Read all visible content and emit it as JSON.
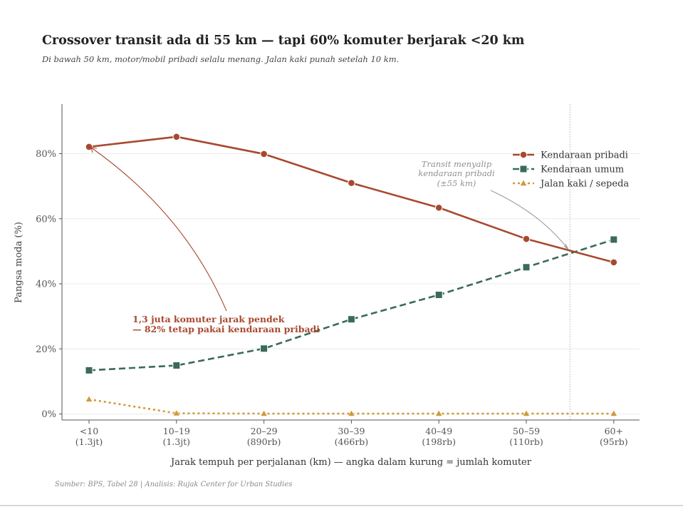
{
  "header": {
    "title": "Crossover transit ada di 55 km — tapi 60% komuter berjarak <20 km",
    "subtitle": "Di bawah 50 km, motor/mobil pribadi selalu menang. Jalan kaki punah setelah 10 km."
  },
  "footer": {
    "source": "Sumber: BPS, Tabel 28  |  Analisis: Rujak Center for Urban Studies"
  },
  "chart_data": {
    "type": "line",
    "title": "Crossover transit ada di 55 km — tapi 60% komuter berjarak <20 km",
    "subtitle": "Di bawah 50 km, motor/mobil pribadi selalu menang. Jalan kaki punah setelah 10 km.",
    "xlabel": "Jarak tempuh per perjalanan (km) — angka dalam kurung = jumlah komuter",
    "ylabel": "Pangsa moda (%)",
    "categories": [
      "<10",
      "10–19",
      "20–29",
      "30–39",
      "40–49",
      "50–59",
      "60+"
    ],
    "category_sublabels": [
      "(1.3jt)",
      "(1.3jt)",
      "(890rb)",
      "(466rb)",
      "(198rb)",
      "(110rb)",
      "(95rb)"
    ],
    "ylim": [
      -2,
      94
    ],
    "yticks": [
      0,
      20,
      40,
      60,
      80
    ],
    "ytick_labels": [
      "0%",
      "20%",
      "40%",
      "60%",
      "80%"
    ],
    "grid": "horizontal",
    "legend_position": "top-right",
    "series": [
      {
        "name": "Kendaraan pribadi",
        "color": "#a8492f",
        "marker": "circle",
        "linestyle": "solid",
        "values": [
          82.1,
          85.2,
          79.9,
          71.0,
          63.4,
          53.8,
          46.6
        ]
      },
      {
        "name": "Kendaraan umum",
        "color": "#3a6b58",
        "marker": "square",
        "linestyle": "dashed",
        "values": [
          13.4,
          14.9,
          20.1,
          29.1,
          36.6,
          45.1,
          53.6
        ]
      },
      {
        "name": "Jalan kaki / sepeda",
        "color": "#d09a3a",
        "marker": "triangle",
        "linestyle": "dotted",
        "values": [
          4.5,
          0.2,
          0.1,
          0.1,
          0.1,
          0.1,
          0.1
        ]
      }
    ],
    "reference_line": {
      "x_km": 55,
      "style": "dotted",
      "color": "#aaaaaa"
    },
    "annotations": [
      {
        "text_lines": [
          "Transit menyalip",
          "kendaraan pribadi",
          "(±55 km)"
        ],
        "color": "#8f8f8f",
        "style": "italic",
        "points_to": "crossover at ~55 km, ~50%"
      },
      {
        "text_lines": [
          "1,3 juta komuter jarak pendek",
          "— 82% tetap pakai kendaraan pribadi"
        ],
        "color": "#a8492f",
        "style": "bold",
        "points_to": "Kendaraan pribadi at <10 km (82%)"
      }
    ]
  }
}
